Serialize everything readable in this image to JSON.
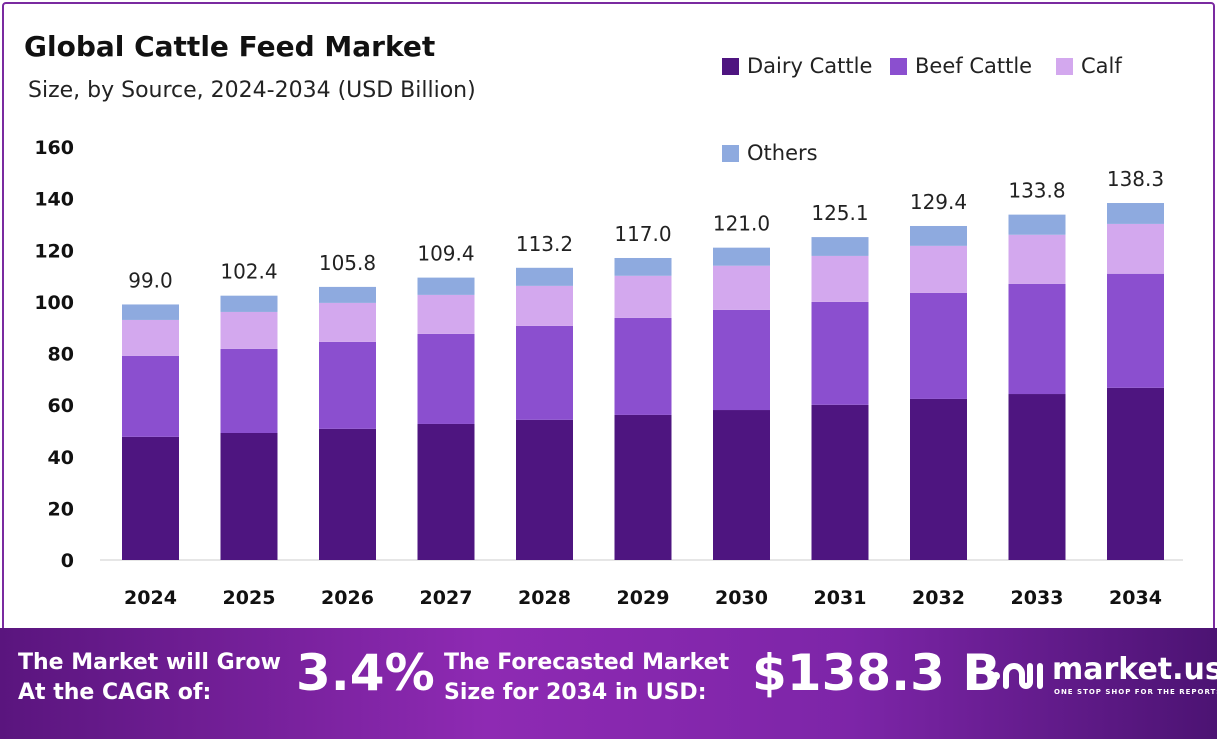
{
  "chart_data": {
    "type": "bar",
    "stacked": true,
    "title": "Global Cattle Feed Market",
    "subtitle": "Size, by Source, 2024-2034 (USD Billion)",
    "categories": [
      "2024",
      "2025",
      "2026",
      "2027",
      "2028",
      "2029",
      "2030",
      "2031",
      "2032",
      "2033",
      "2034"
    ],
    "series": [
      {
        "name": "Dairy Cattle",
        "color": "#4e1580",
        "values": [
          47.7,
          49.2,
          50.8,
          52.7,
          54.3,
          56.2,
          58.1,
          60.1,
          62.4,
          64.3,
          66.7
        ]
      },
      {
        "name": "Beef Cattle",
        "color": "#8b4fcf",
        "values": [
          31.4,
          32.6,
          33.7,
          34.9,
          36.4,
          37.6,
          38.8,
          39.9,
          41.1,
          42.7,
          44.2
        ]
      },
      {
        "name": "Calf",
        "color": "#d3a8ee",
        "values": [
          13.9,
          14.3,
          15.1,
          15.1,
          15.5,
          16.3,
          17.1,
          17.8,
          18.2,
          19.0,
          19.3
        ]
      },
      {
        "name": "Others",
        "color": "#8eaadf",
        "values": [
          6.0,
          6.3,
          6.2,
          6.7,
          7.0,
          6.9,
          7.0,
          7.3,
          7.7,
          7.8,
          8.1
        ]
      }
    ],
    "totals": [
      "99.0",
      "102.4",
      "105.8",
      "109.4",
      "113.2",
      "117.0",
      "121.0",
      "125.1",
      "129.4",
      "133.8",
      "138.3"
    ],
    "yticks": [
      "0",
      "20",
      "40",
      "60",
      "80",
      "100",
      "120",
      "140",
      "160"
    ],
    "ylim": [
      0,
      160
    ],
    "grid": false,
    "legend": "top-right"
  },
  "footer": {
    "cagr_label_1": "The Market will Grow",
    "cagr_label_2": "At the CAGR of:",
    "cagr_value": "3.4%",
    "forecast_label_1": "The Forecasted Market",
    "forecast_label_2": "Size for 2034 in USD:",
    "forecast_value": "$138.3 B",
    "logo_name": "market.us",
    "logo_tagline": "ONE STOP SHOP FOR THE REPORTS"
  }
}
